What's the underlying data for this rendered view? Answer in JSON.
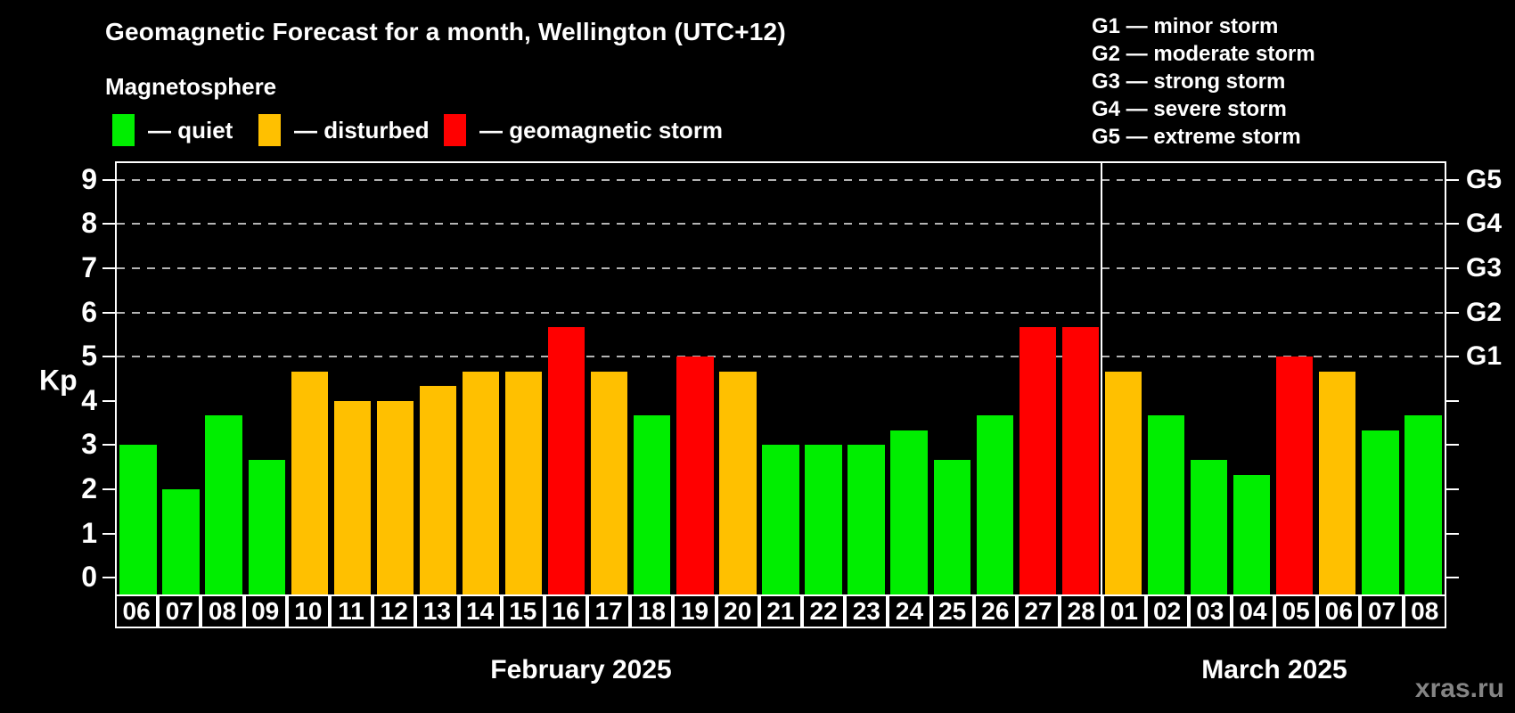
{
  "title": "Geomagnetic Forecast for a month, Wellington (UTC+12)",
  "subtitle": "Magnetosphere",
  "kp_axis_label": "Kp",
  "watermark": "xras.ru",
  "colors": {
    "quiet": "#00ee00",
    "disturbed": "#ffc000",
    "storm": "#ff0000",
    "background": "#000000",
    "grid": "#b4b4b4",
    "frame": "#ffffff",
    "watermark_text": "#848484"
  },
  "legend": {
    "items": [
      {
        "key": "quiet",
        "label": "— quiet"
      },
      {
        "key": "disturbed",
        "label": "— disturbed"
      },
      {
        "key": "storm",
        "label": "— geomagnetic storm"
      }
    ]
  },
  "storm_scale_legend": {
    "items": [
      {
        "code": "G1",
        "label": "G1 — minor storm"
      },
      {
        "code": "G2",
        "label": "G2 — moderate storm"
      },
      {
        "code": "G3",
        "label": "G3 — strong storm"
      },
      {
        "code": "G4",
        "label": "G4 — severe storm"
      },
      {
        "code": "G5",
        "label": "G5 — extreme storm"
      }
    ]
  },
  "chart_data": {
    "type": "bar",
    "title": "Geomagnetic Forecast for a month, Wellington (UTC+12)",
    "ylabel": "Kp",
    "ylim": [
      0,
      9
    ],
    "yticks": [
      0,
      1,
      2,
      3,
      4,
      5,
      6,
      7,
      8,
      9
    ],
    "gridlines_at": [
      5,
      6,
      7,
      8,
      9
    ],
    "grid_style": "dashed gray lines only at storm levels (Kp 5-9)",
    "legend_position": "top-left",
    "right_axis_labels": [
      {
        "value": 5,
        "label": "G1"
      },
      {
        "value": 6,
        "label": "G2"
      },
      {
        "value": 7,
        "label": "G3"
      },
      {
        "value": 8,
        "label": "G4"
      },
      {
        "value": 9,
        "label": "G5"
      }
    ],
    "months": [
      {
        "label": "February 2025",
        "bars": [
          {
            "day": "06",
            "kp": 3.0,
            "status": "quiet"
          },
          {
            "day": "07",
            "kp": 2.0,
            "status": "quiet"
          },
          {
            "day": "08",
            "kp": 3.67,
            "status": "quiet"
          },
          {
            "day": "09",
            "kp": 2.67,
            "status": "quiet"
          },
          {
            "day": "10",
            "kp": 4.67,
            "status": "disturbed"
          },
          {
            "day": "11",
            "kp": 4.0,
            "status": "disturbed"
          },
          {
            "day": "12",
            "kp": 4.0,
            "status": "disturbed"
          },
          {
            "day": "13",
            "kp": 4.33,
            "status": "disturbed"
          },
          {
            "day": "14",
            "kp": 4.67,
            "status": "disturbed"
          },
          {
            "day": "15",
            "kp": 4.67,
            "status": "disturbed"
          },
          {
            "day": "16",
            "kp": 5.67,
            "status": "storm"
          },
          {
            "day": "17",
            "kp": 4.67,
            "status": "disturbed"
          },
          {
            "day": "18",
            "kp": 3.67,
            "status": "quiet"
          },
          {
            "day": "19",
            "kp": 5.0,
            "status": "storm"
          },
          {
            "day": "20",
            "kp": 4.67,
            "status": "disturbed"
          },
          {
            "day": "21",
            "kp": 3.0,
            "status": "quiet"
          },
          {
            "day": "22",
            "kp": 3.0,
            "status": "quiet"
          },
          {
            "day": "23",
            "kp": 3.0,
            "status": "quiet"
          },
          {
            "day": "24",
            "kp": 3.33,
            "status": "quiet"
          },
          {
            "day": "25",
            "kp": 2.67,
            "status": "quiet"
          },
          {
            "day": "26",
            "kp": 3.67,
            "status": "quiet"
          },
          {
            "day": "27",
            "kp": 5.67,
            "status": "storm"
          },
          {
            "day": "28",
            "kp": 5.67,
            "status": "storm"
          }
        ]
      },
      {
        "label": "March 2025",
        "bars": [
          {
            "day": "01",
            "kp": 4.67,
            "status": "disturbed"
          },
          {
            "day": "02",
            "kp": 3.67,
            "status": "quiet"
          },
          {
            "day": "03",
            "kp": 2.67,
            "status": "quiet"
          },
          {
            "day": "04",
            "kp": 2.33,
            "status": "quiet"
          },
          {
            "day": "05",
            "kp": 5.0,
            "status": "storm"
          },
          {
            "day": "06",
            "kp": 4.67,
            "status": "disturbed"
          },
          {
            "day": "07",
            "kp": 3.33,
            "status": "quiet"
          },
          {
            "day": "08",
            "kp": 3.67,
            "status": "quiet"
          }
        ]
      }
    ]
  }
}
